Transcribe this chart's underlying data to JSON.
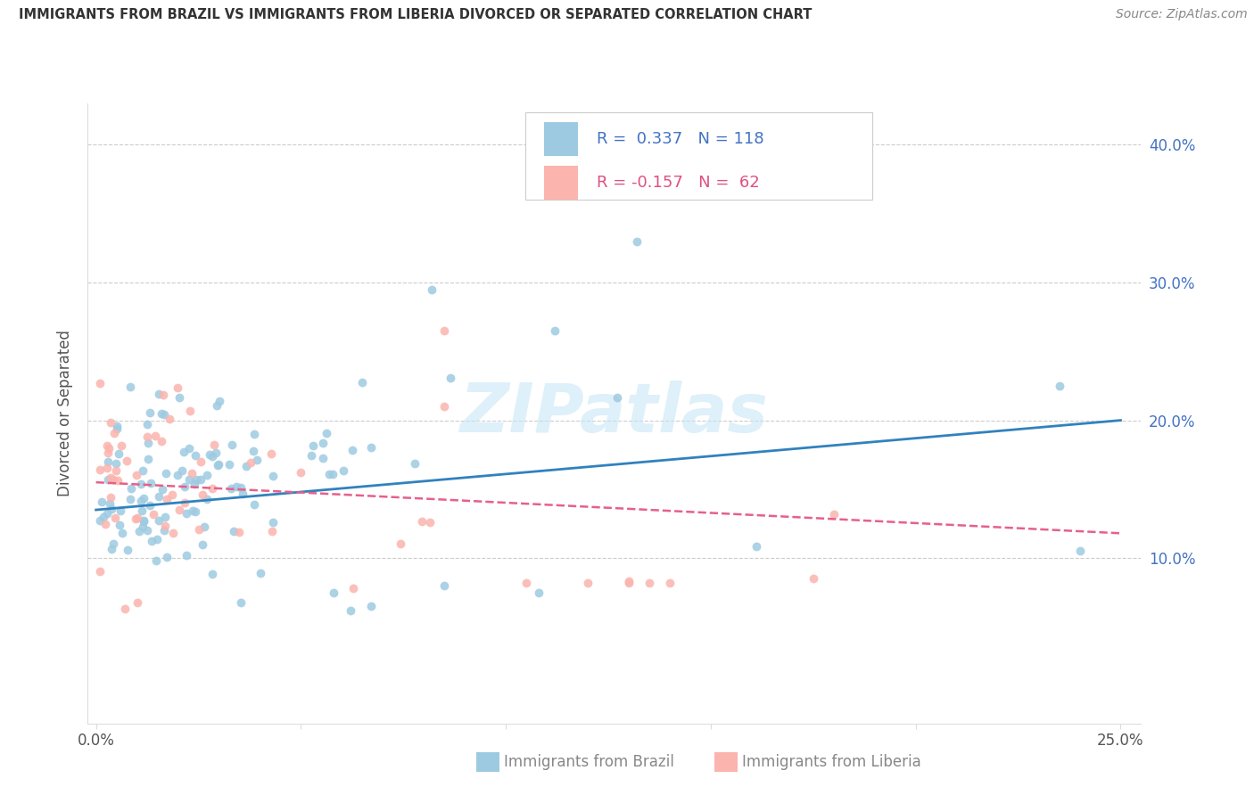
{
  "title": "IMMIGRANTS FROM BRAZIL VS IMMIGRANTS FROM LIBERIA DIVORCED OR SEPARATED CORRELATION CHART",
  "source": "Source: ZipAtlas.com",
  "ylabel": "Divorced or Separated",
  "xlabel_brazil": "Immigrants from Brazil",
  "xlabel_liberia": "Immigrants from Liberia",
  "xlim": [
    0.0,
    0.25
  ],
  "ylim": [
    -0.02,
    0.42
  ],
  "x_tick_positions": [
    0.0,
    0.05,
    0.1,
    0.15,
    0.2,
    0.25
  ],
  "x_tick_labels": [
    "0.0%",
    "",
    "",
    "",
    "",
    "25.0%"
  ],
  "y_tick_positions": [
    0.1,
    0.2,
    0.3,
    0.4
  ],
  "y_tick_labels": [
    "10.0%",
    "20.0%",
    "30.0%",
    "40.0%"
  ],
  "brazil_R": 0.337,
  "brazil_N": 118,
  "liberia_R": -0.157,
  "liberia_N": 62,
  "brazil_color": "#9ecae1",
  "liberia_color": "#fbb4ae",
  "brazil_line_color": "#3182bd",
  "liberia_line_color": "#e6608a",
  "watermark": "ZIPatlas",
  "seed_brazil": 123,
  "seed_liberia": 456,
  "brazil_line_start_y": 0.135,
  "brazil_line_end_y": 0.2,
  "liberia_line_start_y": 0.155,
  "liberia_line_end_y": 0.118
}
